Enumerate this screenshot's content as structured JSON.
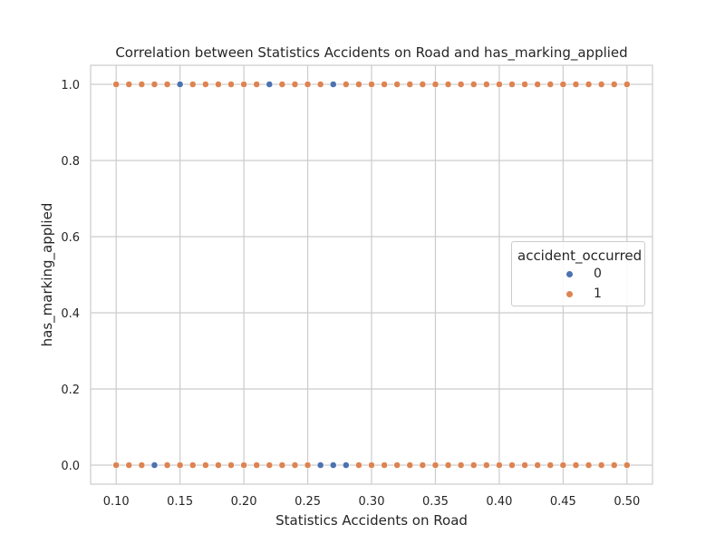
{
  "chart_data": {
    "type": "scatter",
    "title": "Correlation between Statistics Accidents on Road and has_marking_applied",
    "xlabel": "Statistics Accidents on Road",
    "ylabel": "has_marking_applied",
    "xlim": [
      0.08,
      0.52
    ],
    "ylim": [
      -0.05,
      1.05
    ],
    "xticks": [
      "0.10",
      "0.15",
      "0.20",
      "0.25",
      "0.30",
      "0.35",
      "0.40",
      "0.45",
      "0.50"
    ],
    "xtick_values": [
      0.1,
      0.15,
      0.2,
      0.25,
      0.3,
      0.35,
      0.4,
      0.45,
      0.5
    ],
    "yticks": [
      "0.0",
      "0.2",
      "0.4",
      "0.6",
      "0.8",
      "1.0"
    ],
    "ytick_values": [
      0.0,
      0.2,
      0.4,
      0.6,
      0.8,
      1.0
    ],
    "grid": true,
    "legend": {
      "title": "accident_occurred",
      "placement": "center-right"
    },
    "series": [
      {
        "name": "0",
        "color": "#4c72b0",
        "x": [
          0.15,
          0.22,
          0.27,
          0.13,
          0.26,
          0.27,
          0.28
        ],
        "y": [
          1,
          1,
          1,
          0,
          0,
          0,
          0
        ]
      },
      {
        "name": "1",
        "color": "#dd8452",
        "x": [
          0.1,
          0.11,
          0.12,
          0.13,
          0.14,
          0.16,
          0.17,
          0.18,
          0.19,
          0.2,
          0.21,
          0.23,
          0.24,
          0.25,
          0.26,
          0.28,
          0.29,
          0.3,
          0.31,
          0.32,
          0.33,
          0.34,
          0.35,
          0.36,
          0.37,
          0.38,
          0.39,
          0.4,
          0.41,
          0.42,
          0.43,
          0.44,
          0.45,
          0.46,
          0.47,
          0.48,
          0.49,
          0.5,
          0.1,
          0.11,
          0.12,
          0.14,
          0.15,
          0.16,
          0.17,
          0.18,
          0.19,
          0.2,
          0.21,
          0.22,
          0.23,
          0.24,
          0.25,
          0.29,
          0.3,
          0.31,
          0.32,
          0.33,
          0.34,
          0.35,
          0.36,
          0.37,
          0.38,
          0.39,
          0.4,
          0.41,
          0.42,
          0.43,
          0.44,
          0.45,
          0.46,
          0.47,
          0.48,
          0.49,
          0.5
        ],
        "y": [
          1,
          1,
          1,
          1,
          1,
          1,
          1,
          1,
          1,
          1,
          1,
          1,
          1,
          1,
          1,
          1,
          1,
          1,
          1,
          1,
          1,
          1,
          1,
          1,
          1,
          1,
          1,
          1,
          1,
          1,
          1,
          1,
          1,
          1,
          1,
          1,
          1,
          1,
          0,
          0,
          0,
          0,
          0,
          0,
          0,
          0,
          0,
          0,
          0,
          0,
          0,
          0,
          0,
          0,
          0,
          0,
          0,
          0,
          0,
          0,
          0,
          0,
          0,
          0,
          0,
          0,
          0,
          0,
          0,
          0,
          0,
          0,
          0,
          0,
          0
        ]
      }
    ]
  }
}
